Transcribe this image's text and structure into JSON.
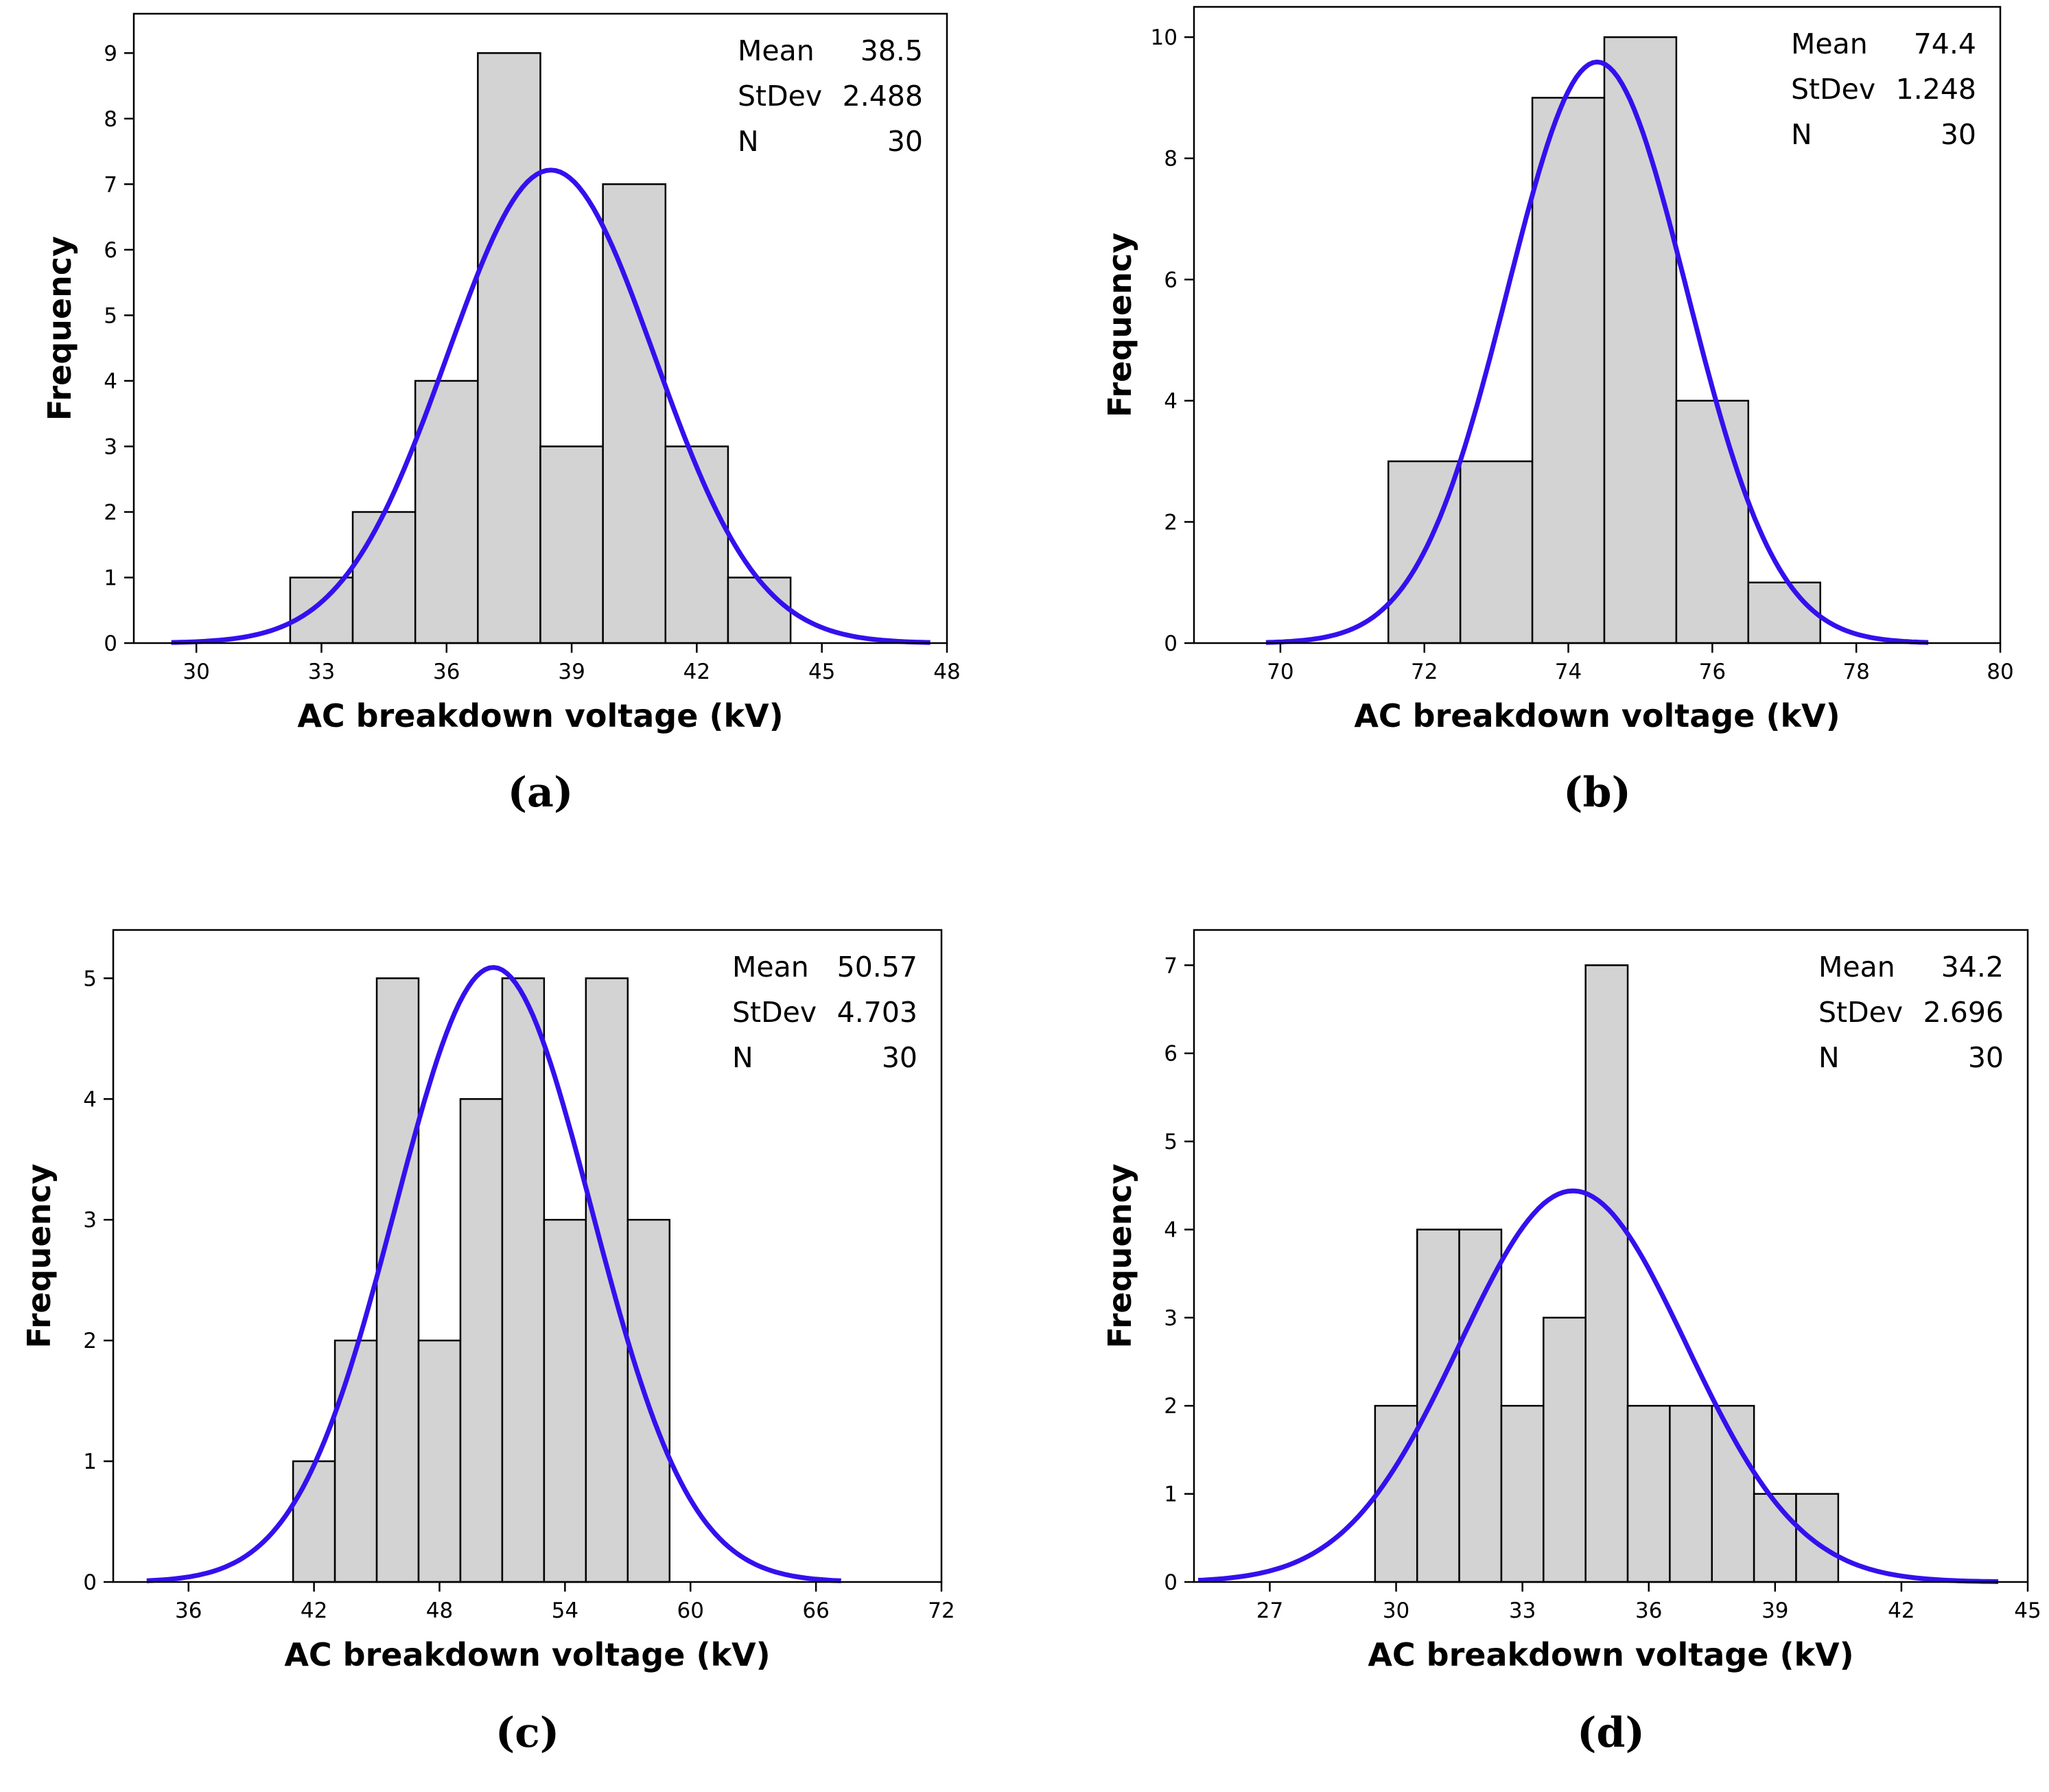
{
  "style": {
    "bar_fill": "#d3d3d3",
    "bar_stroke": "#000000",
    "curve_color": "#3311ee"
  },
  "chart_data": [
    {
      "type": "bar",
      "panel_label": "(a)",
      "xlabel": "AC breakdown voltage (kV)",
      "ylabel": "Frequency",
      "xlim": [
        28.5,
        48
      ],
      "ylim": [
        0,
        9.6
      ],
      "xticks": [
        "30",
        "33",
        "36",
        "39",
        "42",
        "45",
        "48"
      ],
      "yticks": [
        "0",
        "1",
        "2",
        "3",
        "4",
        "5",
        "6",
        "7",
        "8",
        "9"
      ],
      "bin_width": 1.5,
      "bins": [
        {
          "start": 32.25,
          "value": 1
        },
        {
          "start": 33.75,
          "value": 2
        },
        {
          "start": 35.25,
          "value": 4
        },
        {
          "start": 36.75,
          "value": 9
        },
        {
          "start": 38.25,
          "value": 3
        },
        {
          "start": 39.75,
          "value": 7
        },
        {
          "start": 41.25,
          "value": 3
        },
        {
          "start": 42.75,
          "value": 1
        }
      ],
      "fit": {
        "type": "normal",
        "mean": 38.5,
        "stdev": 2.488,
        "n": 30,
        "x_range": [
          29.4,
          47.6
        ]
      },
      "stats": [
        {
          "label": "Mean",
          "value": "38.5"
        },
        {
          "label": "StDev",
          "value": "2.488"
        },
        {
          "label": "N",
          "value": "30"
        }
      ]
    },
    {
      "type": "bar",
      "panel_label": "(b)",
      "xlabel": "AC breakdown voltage (kV)",
      "ylabel": "Frequency",
      "xlim": [
        68.8,
        80
      ],
      "ylim": [
        0,
        10.5
      ],
      "xticks": [
        "70",
        "72",
        "74",
        "76",
        "78",
        "80"
      ],
      "yticks": [
        "0",
        "2",
        "4",
        "6",
        "8",
        "10"
      ],
      "bin_width": 1,
      "bins": [
        {
          "start": 71.5,
          "value": 3
        },
        {
          "start": 72.5,
          "value": 3
        },
        {
          "start": 73.5,
          "value": 9
        },
        {
          "start": 74.5,
          "value": 10
        },
        {
          "start": 75.5,
          "value": 4
        },
        {
          "start": 76.5,
          "value": 1
        }
      ],
      "fit": {
        "type": "normal",
        "mean": 74.4,
        "stdev": 1.248,
        "n": 30,
        "x_range": [
          69.8,
          79.0
        ]
      },
      "stats": [
        {
          "label": "Mean",
          "value": "74.4"
        },
        {
          "label": "StDev",
          "value": "1.248"
        },
        {
          "label": "N",
          "value": "30"
        }
      ]
    },
    {
      "type": "bar",
      "panel_label": "(c)",
      "xlabel": "AC breakdown voltage (kV)",
      "ylabel": "Frequency",
      "xlim": [
        32.4,
        72
      ],
      "ylim": [
        0,
        5.4
      ],
      "xticks": [
        "36",
        "42",
        "48",
        "54",
        "60",
        "66",
        "72"
      ],
      "yticks": [
        "0",
        "1",
        "2",
        "3",
        "4",
        "5"
      ],
      "bin_width": 2,
      "bins": [
        {
          "start": 41,
          "value": 1
        },
        {
          "start": 43,
          "value": 2
        },
        {
          "start": 45,
          "value": 5
        },
        {
          "start": 47,
          "value": 2
        },
        {
          "start": 49,
          "value": 4
        },
        {
          "start": 51,
          "value": 5
        },
        {
          "start": 53,
          "value": 3
        },
        {
          "start": 55,
          "value": 5
        },
        {
          "start": 57,
          "value": 3
        }
      ],
      "fit": {
        "type": "normal",
        "mean": 50.57,
        "stdev": 4.703,
        "n": 30,
        "x_range": [
          34.0,
          67.2
        ]
      },
      "stats": [
        {
          "label": "Mean",
          "value": "50.57"
        },
        {
          "label": "StDev",
          "value": "4.703"
        },
        {
          "label": "N",
          "value": "30"
        }
      ]
    },
    {
      "type": "bar",
      "panel_label": "(d)",
      "xlabel": "AC breakdown voltage (kV)",
      "ylabel": "Frequency",
      "xlim": [
        25.2,
        45
      ],
      "ylim": [
        0,
        7.4
      ],
      "xticks": [
        "27",
        "30",
        "33",
        "36",
        "39",
        "42",
        "45"
      ],
      "yticks": [
        "0",
        "1",
        "2",
        "3",
        "4",
        "5",
        "6",
        "7"
      ],
      "bin_width": 1,
      "bins": [
        {
          "start": 29.5,
          "value": 2
        },
        {
          "start": 30.5,
          "value": 4
        },
        {
          "start": 31.5,
          "value": 4
        },
        {
          "start": 32.5,
          "value": 2
        },
        {
          "start": 33.5,
          "value": 3
        },
        {
          "start": 34.5,
          "value": 7
        },
        {
          "start": 35.5,
          "value": 2
        },
        {
          "start": 36.5,
          "value": 2
        },
        {
          "start": 37.5,
          "value": 2
        },
        {
          "start": 38.5,
          "value": 1
        },
        {
          "start": 39.5,
          "value": 1
        }
      ],
      "fit": {
        "type": "normal",
        "mean": 34.2,
        "stdev": 2.696,
        "n": 30,
        "x_range": [
          25.3,
          44.3
        ]
      },
      "stats": [
        {
          "label": "Mean",
          "value": "34.2"
        },
        {
          "label": "StDev",
          "value": "2.696"
        },
        {
          "label": "N",
          "value": "30"
        }
      ]
    }
  ]
}
